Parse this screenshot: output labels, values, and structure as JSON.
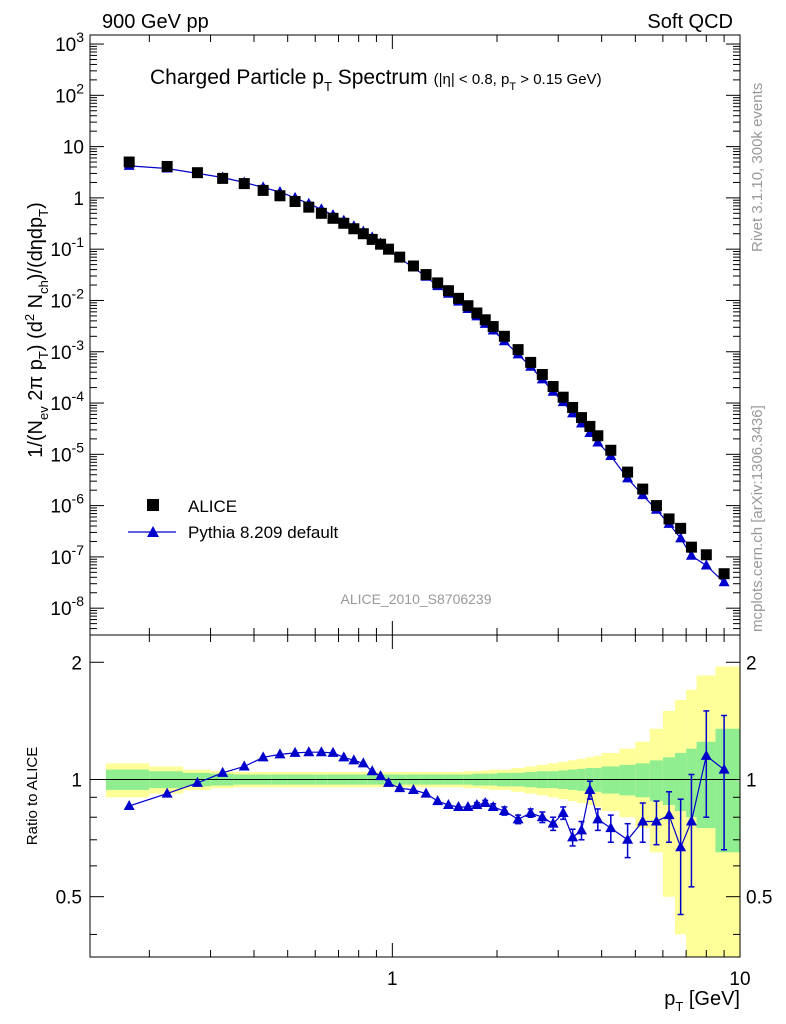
{
  "header": {
    "left": "900 GeV pp",
    "right": "Soft QCD"
  },
  "side_labels": {
    "rivet": "Rivet 3.1.10,  300k events",
    "mcplots": "mcplots.cern.ch [arXiv:1306.3436]"
  },
  "analysis_id": "ALICE_2010_S8706239",
  "title": {
    "main": "Charged Particle p",
    "main_sub": "T",
    "main_tail": " Spectrum",
    "cuts": "(|η| < 0.8, p",
    "cuts_sub": "T",
    "cuts_tail": " > 0.15 GeV)"
  },
  "axes": {
    "ylabel_main": "1/(N_ev 2π p_T) (d² N_ch)/(dη dp_T)",
    "ylabel_ratio": "Ratio to ALICE",
    "xlabel": "p",
    "xlabel_sub": "T",
    "xlabel_unit": " [GeV]"
  },
  "legend": {
    "data": "ALICE",
    "mc": "Pythia 8.209 default"
  },
  "colors": {
    "data": "#000000",
    "mc": "#0000cc",
    "band_inner": "#90ee90",
    "band_outer": "#ffff99"
  },
  "chart_data": [
    {
      "type": "scatter",
      "xscale": "log",
      "yscale": "log",
      "xlim": [
        0.135,
        10
      ],
      "ylim": [
        3e-09,
        1500
      ],
      "y_ticks": [
        "10^-8",
        "10^-7",
        "10^-6",
        "10^-5",
        "10^-4",
        "10^-3",
        "10^-2",
        "10^-1",
        "1",
        "10",
        "10^2",
        "10^3"
      ],
      "series": [
        {
          "name": "ALICE",
          "marker": "square",
          "x": [
            0.175,
            0.225,
            0.275,
            0.325,
            0.375,
            0.425,
            0.475,
            0.525,
            0.575,
            0.625,
            0.675,
            0.725,
            0.775,
            0.825,
            0.875,
            0.925,
            0.975,
            1.05,
            1.15,
            1.25,
            1.35,
            1.45,
            1.55,
            1.65,
            1.75,
            1.85,
            1.95,
            2.1,
            2.3,
            2.5,
            2.7,
            2.9,
            3.1,
            3.3,
            3.5,
            3.7,
            3.9,
            4.25,
            4.75,
            5.25,
            5.75,
            6.25,
            6.75,
            7.25,
            8.0,
            9.0
          ],
          "y": [
            5.0,
            4.1,
            3.1,
            2.4,
            1.9,
            1.4,
            1.1,
            0.85,
            0.66,
            0.5,
            0.4,
            0.32,
            0.25,
            0.2,
            0.155,
            0.125,
            0.1,
            0.07,
            0.047,
            0.032,
            0.022,
            0.0155,
            0.011,
            0.0079,
            0.0057,
            0.0042,
            0.0031,
            0.002,
            0.0011,
            0.00062,
            0.00036,
            0.00021,
            0.00013,
            8.2e-05,
            5.2e-05,
            3.5e-05,
            2.3e-05,
            1.2e-05,
            4.5e-06,
            2.1e-06,
            1e-06,
            5.5e-07,
            3.6e-07,
            1.55e-07,
            1.1e-07,
            4.7e-08
          ]
        },
        {
          "name": "Pythia 8.209 default",
          "marker": "triangle",
          "x": [
            0.175,
            0.225,
            0.275,
            0.325,
            0.375,
            0.425,
            0.475,
            0.525,
            0.575,
            0.625,
            0.675,
            0.725,
            0.775,
            0.825,
            0.875,
            0.925,
            0.975,
            1.05,
            1.15,
            1.25,
            1.35,
            1.45,
            1.55,
            1.65,
            1.75,
            1.85,
            1.95,
            2.1,
            2.3,
            2.5,
            2.7,
            2.9,
            3.1,
            3.3,
            3.5,
            3.7,
            3.9,
            4.25,
            4.75,
            5.25,
            5.75,
            6.25,
            6.75,
            7.25,
            8.0,
            9.0
          ],
          "y": [
            4.2,
            3.75,
            3.0,
            2.5,
            2.0,
            1.6,
            1.3,
            1.0,
            0.77,
            0.6,
            0.46,
            0.36,
            0.28,
            0.22,
            0.17,
            0.13,
            0.095,
            0.066,
            0.044,
            0.029,
            0.019,
            0.0135,
            0.0095,
            0.0068,
            0.0049,
            0.0035,
            0.0026,
            0.0016,
            0.00089,
            0.00051,
            0.00029,
            0.000166,
            0.000104,
            6.3e-05,
            4e-05,
            2.6e-05,
            1.7e-05,
            9.3e-06,
            3.4e-06,
            1.6e-06,
            8.3e-07,
            4.4e-07,
            2.3e-07,
            1.05e-07,
            6.8e-08,
            3.2e-08
          ]
        }
      ]
    },
    {
      "type": "line",
      "xscale": "log",
      "xlim": [
        0.135,
        10
      ],
      "ylim": [
        0.35,
        2.35
      ],
      "y_ticks": [
        0.5,
        1,
        2
      ],
      "x_ticks": [
        1,
        10
      ],
      "band_x_edges": [
        0.15,
        0.2,
        0.25,
        0.3,
        0.35,
        0.4,
        0.45,
        0.5,
        0.55,
        0.6,
        0.65,
        0.7,
        0.75,
        0.8,
        0.85,
        0.9,
        0.95,
        1.0,
        1.1,
        1.2,
        1.3,
        1.4,
        1.5,
        1.6,
        1.7,
        1.8,
        1.9,
        2.0,
        2.2,
        2.4,
        2.6,
        2.8,
        3.0,
        3.2,
        3.4,
        3.6,
        3.8,
        4.0,
        4.5,
        5.0,
        5.5,
        6.0,
        6.5,
        7.0,
        7.5,
        8.5,
        10.0
      ],
      "band_inner": [
        0.06,
        0.05,
        0.04,
        0.035,
        0.03,
        0.03,
        0.03,
        0.03,
        0.03,
        0.03,
        0.03,
        0.03,
        0.03,
        0.03,
        0.03,
        0.03,
        0.03,
        0.03,
        0.03,
        0.03,
        0.03,
        0.03,
        0.03,
        0.03,
        0.035,
        0.035,
        0.035,
        0.04,
        0.04,
        0.045,
        0.05,
        0.05,
        0.055,
        0.06,
        0.065,
        0.07,
        0.07,
        0.08,
        0.09,
        0.1,
        0.12,
        0.14,
        0.17,
        0.2,
        0.25,
        0.35
      ],
      "band_outer": [
        0.1,
        0.08,
        0.06,
        0.05,
        0.045,
        0.045,
        0.045,
        0.045,
        0.045,
        0.045,
        0.045,
        0.045,
        0.045,
        0.045,
        0.045,
        0.045,
        0.045,
        0.045,
        0.045,
        0.045,
        0.045,
        0.045,
        0.045,
        0.05,
        0.05,
        0.055,
        0.06,
        0.06,
        0.07,
        0.08,
        0.09,
        0.1,
        0.11,
        0.12,
        0.13,
        0.14,
        0.15,
        0.17,
        0.2,
        0.25,
        0.35,
        0.5,
        0.6,
        0.7,
        0.85,
        0.95
      ],
      "series": [
        {
          "name": "Pythia 8.209 default",
          "x": [
            0.175,
            0.225,
            0.275,
            0.325,
            0.375,
            0.425,
            0.475,
            0.525,
            0.575,
            0.625,
            0.675,
            0.725,
            0.775,
            0.825,
            0.875,
            0.925,
            0.975,
            1.05,
            1.15,
            1.25,
            1.35,
            1.45,
            1.55,
            1.65,
            1.75,
            1.85,
            1.95,
            2.1,
            2.3,
            2.5,
            2.7,
            2.9,
            3.1,
            3.3,
            3.5,
            3.7,
            3.9,
            4.25,
            4.75,
            5.25,
            5.75,
            6.25,
            6.75,
            7.25,
            8.0,
            9.0
          ],
          "y": [
            0.855,
            0.92,
            0.98,
            1.04,
            1.08,
            1.14,
            1.16,
            1.17,
            1.175,
            1.175,
            1.17,
            1.14,
            1.12,
            1.1,
            1.05,
            1.02,
            0.98,
            0.95,
            0.94,
            0.92,
            0.88,
            0.86,
            0.85,
            0.85,
            0.86,
            0.87,
            0.85,
            0.83,
            0.79,
            0.82,
            0.8,
            0.77,
            0.82,
            0.71,
            0.74,
            0.94,
            0.79,
            0.75,
            0.7,
            0.78,
            0.78,
            0.81,
            0.67,
            0.78,
            1.15,
            1.06
          ],
          "yerr": [
            0.003,
            0.003,
            0.003,
            0.003,
            0.003,
            0.003,
            0.003,
            0.003,
            0.003,
            0.003,
            0.003,
            0.003,
            0.003,
            0.003,
            0.003,
            0.003,
            0.003,
            0.003,
            0.005,
            0.005,
            0.006,
            0.007,
            0.008,
            0.01,
            0.012,
            0.014,
            0.016,
            0.02,
            0.02,
            0.02,
            0.025,
            0.03,
            0.03,
            0.035,
            0.04,
            0.05,
            0.05,
            0.06,
            0.07,
            0.09,
            0.1,
            0.12,
            0.22,
            0.25,
            0.35,
            0.4
          ]
        }
      ]
    }
  ]
}
